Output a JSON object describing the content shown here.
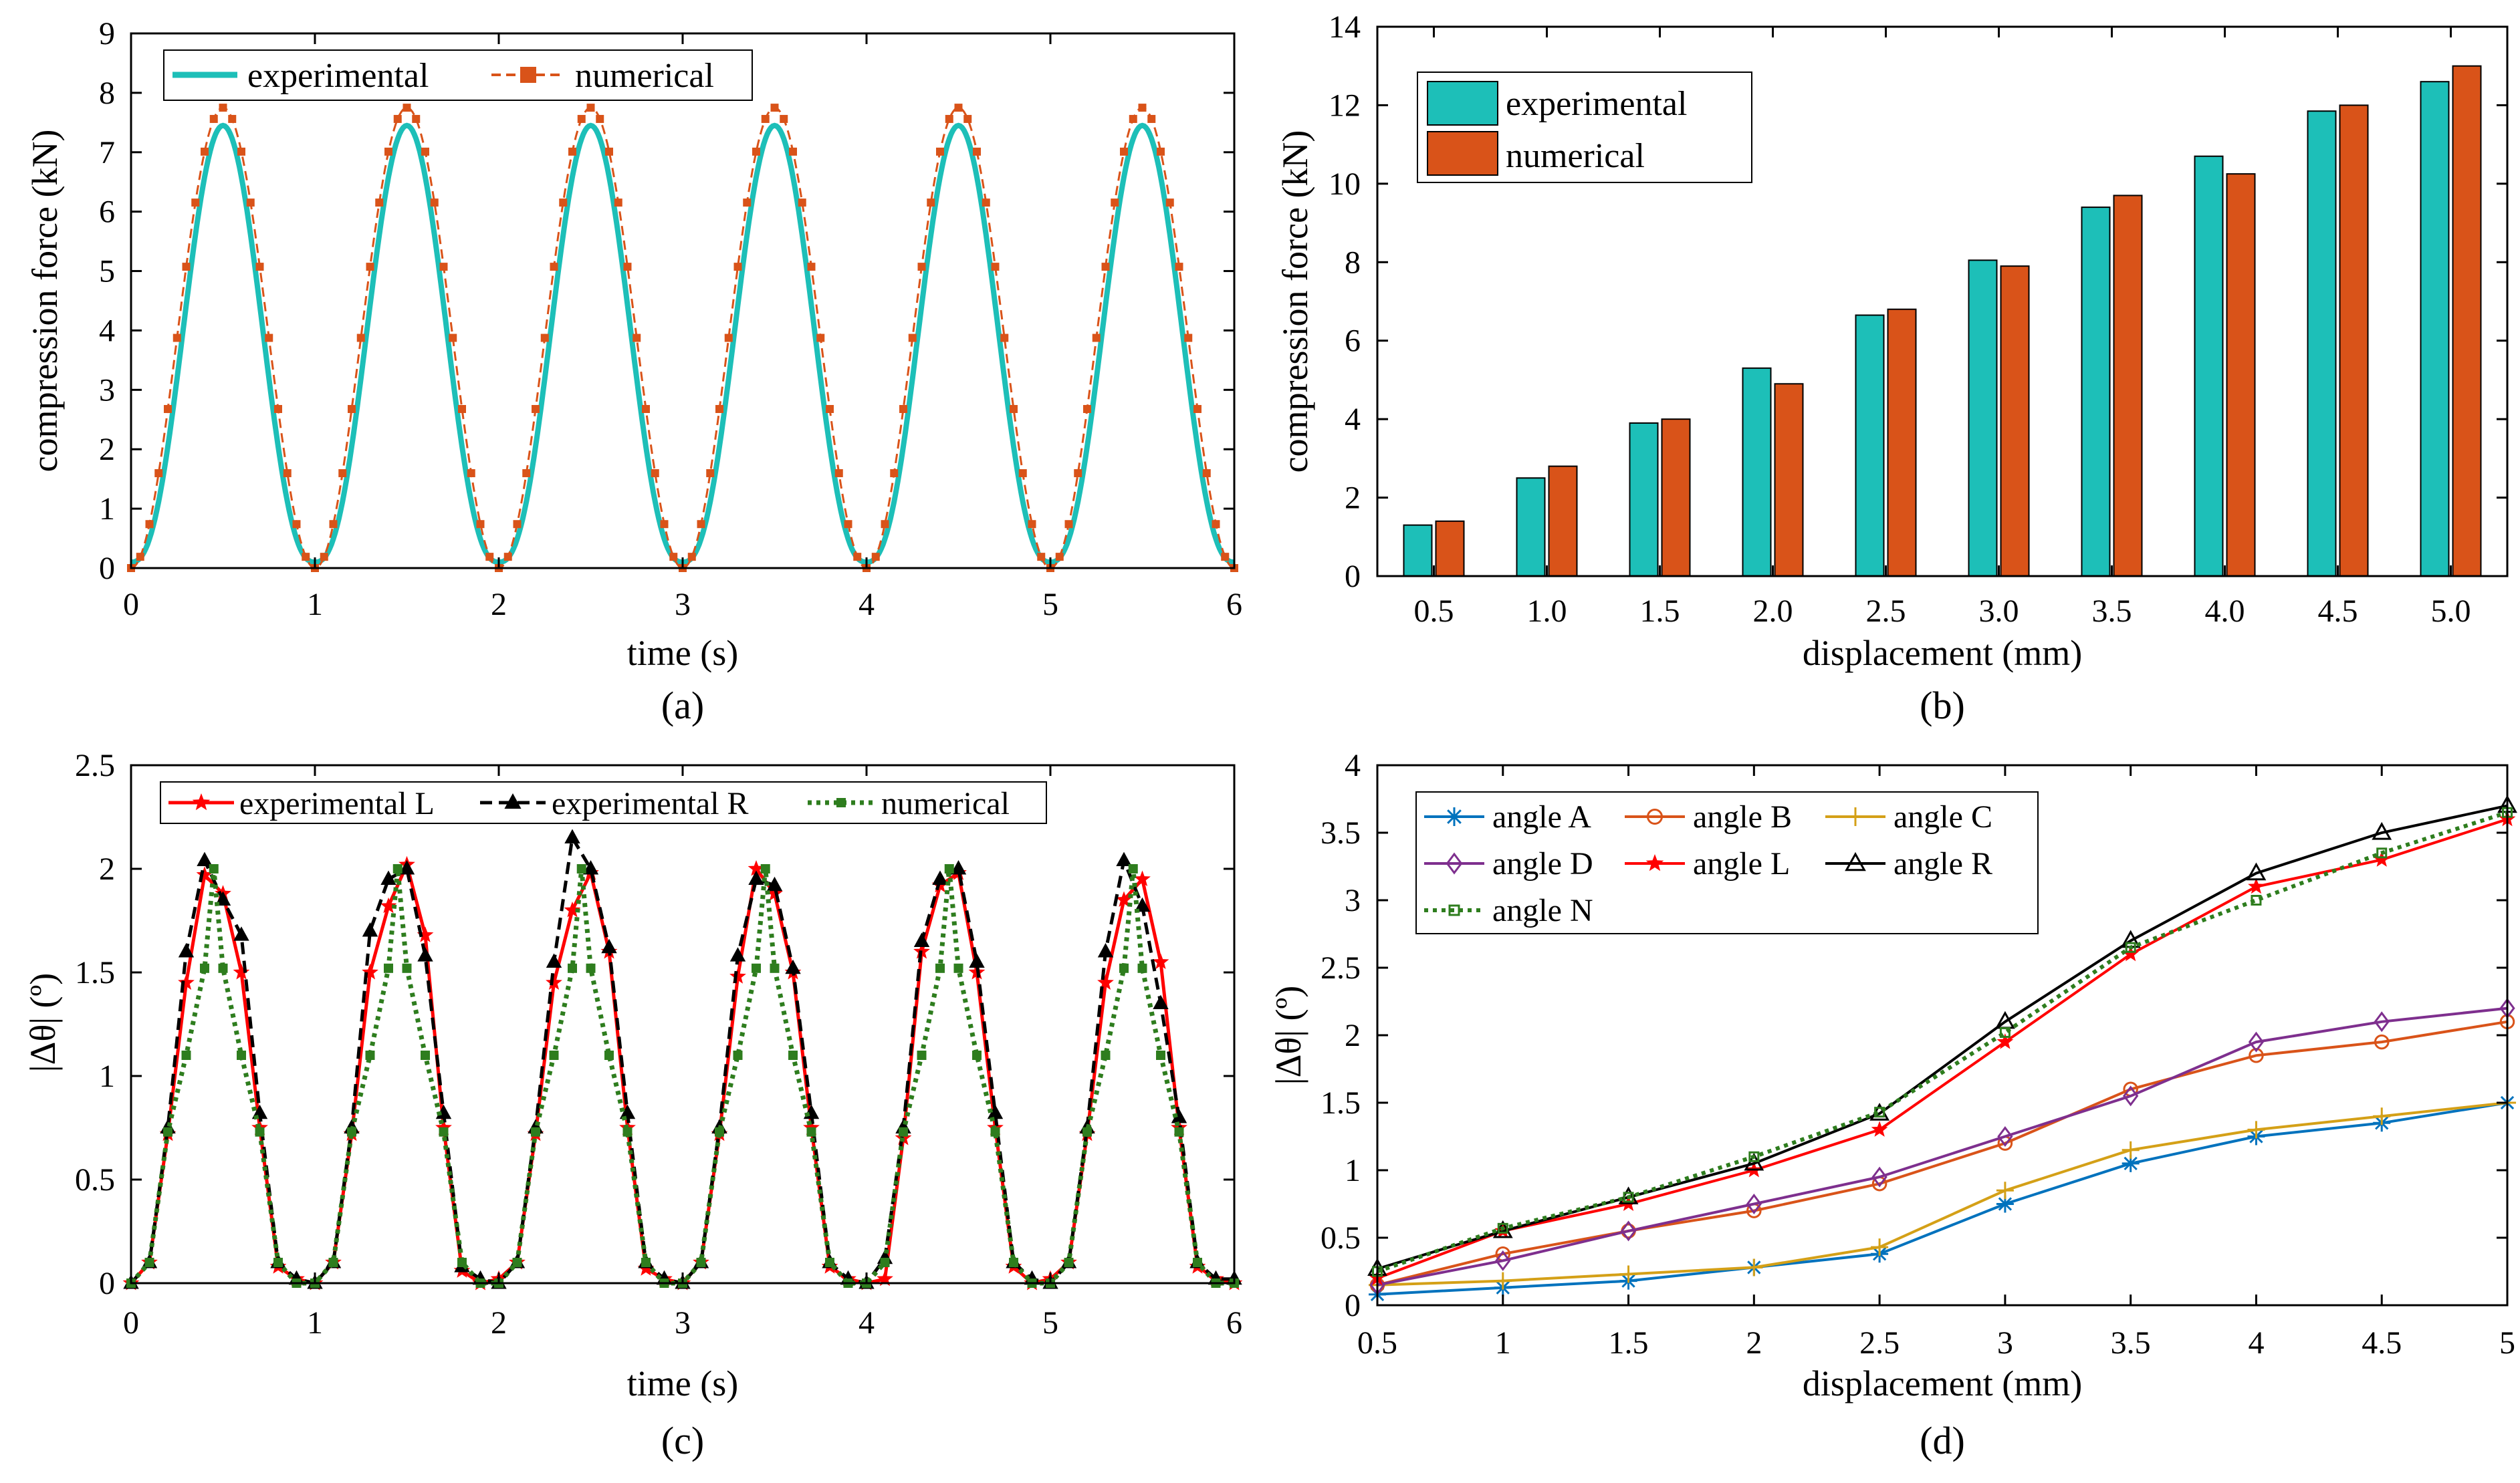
{
  "chart_data": [
    {
      "id": "a",
      "type": "line",
      "panel_label": "(a)",
      "xlabel": "time (s)",
      "ylabel": "compression force (kN)",
      "xlim": [
        0,
        6
      ],
      "ylim": [
        0,
        9
      ],
      "xticks": [
        0,
        1,
        2,
        3,
        4,
        5,
        6
      ],
      "yticks": [
        0,
        1,
        2,
        3,
        4,
        5,
        6,
        7,
        8,
        9
      ],
      "legend": "top-left",
      "series": [
        {
          "name": "experimental",
          "color": "#1dbfb8",
          "period": 1,
          "amplitude_max": 7.45,
          "amplitude_min": 0.1,
          "peak_times": [
            0.5,
            1.5,
            2.5,
            3.5,
            4.5,
            5.5
          ],
          "trough_times": [
            0,
            1,
            2,
            3,
            4,
            5,
            6
          ]
        },
        {
          "name": "numerical",
          "color": "#d95319",
          "marker": "square",
          "period": 1,
          "amplitude_max": 7.75,
          "amplitude_min": 0.0,
          "peak_times": [
            0.5,
            1.5,
            2.5,
            3.5,
            4.5,
            5.5
          ],
          "trough_times": [
            0,
            1,
            2,
            3,
            4,
            5,
            6
          ]
        }
      ]
    },
    {
      "id": "b",
      "type": "bar",
      "panel_label": "(b)",
      "xlabel": "displacement (mm)",
      "ylabel": "compression force (kN)",
      "ylim": [
        0,
        14
      ],
      "yticks": [
        0,
        2,
        4,
        6,
        8,
        10,
        12,
        14
      ],
      "legend": "top-left",
      "categories": [
        "0.5",
        "1.0",
        "1.5",
        "2.0",
        "2.5",
        "3.0",
        "3.5",
        "4.0",
        "4.5",
        "5.0"
      ],
      "series": [
        {
          "name": "experimental",
          "color": "#1dbfb8",
          "values": [
            1.3,
            2.5,
            3.9,
            5.3,
            6.65,
            8.05,
            9.4,
            10.7,
            11.85,
            12.6
          ]
        },
        {
          "name": "numerical",
          "color": "#d95319",
          "values": [
            1.4,
            2.8,
            4.0,
            4.9,
            6.8,
            7.9,
            9.7,
            10.25,
            12.0,
            13.0
          ]
        }
      ]
    },
    {
      "id": "c",
      "type": "line",
      "panel_label": "(c)",
      "xlabel": "time (s)",
      "ylabel": "|Δθ| (º)",
      "xlim": [
        0,
        6
      ],
      "ylim": [
        0,
        2.5
      ],
      "xticks": [
        0,
        1,
        2,
        3,
        4,
        5,
        6
      ],
      "yticks": [
        "0",
        "0.5",
        "1",
        "1.5",
        "2",
        "2.5"
      ],
      "legend": "top",
      "series": [
        {
          "name": "experimental L",
          "color": "#ff0000",
          "marker": "star",
          "dash": "solid",
          "x": [
            0,
            0.1,
            0.2,
            0.3,
            0.4,
            0.5,
            0.6,
            0.7,
            0.8,
            0.9,
            1.0,
            1.1,
            1.2,
            1.3,
            1.4,
            1.5,
            1.6,
            1.7,
            1.8,
            1.9,
            2.0,
            2.1,
            2.2,
            2.3,
            2.4,
            2.5,
            2.6,
            2.7,
            2.8,
            2.9,
            3.0,
            3.1,
            3.2,
            3.3,
            3.4,
            3.5,
            3.6,
            3.7,
            3.8,
            3.9,
            4.0,
            4.1,
            4.2,
            4.3,
            4.4,
            4.5,
            4.6,
            4.7,
            4.8,
            4.9,
            5.0,
            5.1,
            5.2,
            5.3,
            5.4,
            5.5,
            5.6,
            5.7,
            5.8,
            5.9,
            6.0
          ],
          "y": [
            0,
            0.1,
            0.72,
            1.45,
            1.97,
            1.88,
            1.5,
            0.75,
            0.08,
            0.02,
            0,
            0.1,
            0.72,
            1.5,
            1.82,
            2.02,
            1.68,
            0.75,
            0.06,
            0,
            0.02,
            0.1,
            0.72,
            1.45,
            1.8,
            1.98,
            1.6,
            0.75,
            0.07,
            0.02,
            0,
            0.1,
            0.72,
            1.48,
            2.0,
            1.88,
            1.5,
            0.75,
            0.08,
            0.02,
            0,
            0.02,
            0.7,
            1.6,
            1.92,
            1.98,
            1.5,
            0.75,
            0.08,
            0,
            0.02,
            0.1,
            0.72,
            1.45,
            1.85,
            1.95,
            1.55,
            0.75,
            0.08,
            0.02,
            0
          ]
        },
        {
          "name": "experimental R",
          "color": "#000000",
          "marker": "triangle",
          "dash": "dashed",
          "x": [
            0,
            0.1,
            0.2,
            0.3,
            0.4,
            0.5,
            0.6,
            0.7,
            0.8,
            0.9,
            1.0,
            1.1,
            1.2,
            1.3,
            1.4,
            1.5,
            1.6,
            1.7,
            1.8,
            1.9,
            2.0,
            2.1,
            2.2,
            2.3,
            2.4,
            2.5,
            2.6,
            2.7,
            2.8,
            2.9,
            3.0,
            3.1,
            3.2,
            3.3,
            3.4,
            3.5,
            3.6,
            3.7,
            3.8,
            3.9,
            4.0,
            4.1,
            4.2,
            4.3,
            4.4,
            4.5,
            4.6,
            4.7,
            4.8,
            4.9,
            5.0,
            5.1,
            5.2,
            5.3,
            5.4,
            5.5,
            5.6,
            5.7,
            5.8,
            5.9,
            6.0
          ],
          "y": [
            0,
            0.1,
            0.75,
            1.6,
            2.04,
            1.85,
            1.68,
            0.82,
            0.1,
            0.02,
            0,
            0.1,
            0.75,
            1.7,
            1.95,
            2.0,
            1.58,
            0.82,
            0.08,
            0.02,
            0,
            0.1,
            0.75,
            1.55,
            2.15,
            2.0,
            1.62,
            0.82,
            0.1,
            0.02,
            0,
            0.1,
            0.75,
            1.58,
            1.95,
            1.92,
            1.52,
            0.82,
            0.1,
            0.02,
            0,
            0.12,
            0.75,
            1.65,
            1.95,
            2.0,
            1.55,
            0.82,
            0.1,
            0.02,
            0,
            0.1,
            0.75,
            1.6,
            2.04,
            1.82,
            1.35,
            0.8,
            0.1,
            0.02,
            0.02
          ]
        },
        {
          "name": "numerical",
          "color": "#2e7d1e",
          "marker": "square",
          "dash": "dotted",
          "x": [
            0,
            0.1,
            0.2,
            0.3,
            0.4,
            0.45,
            0.5,
            0.6,
            0.7,
            0.8,
            0.9,
            1.0,
            1.1,
            1.2,
            1.3,
            1.4,
            1.45,
            1.5,
            1.6,
            1.7,
            1.8,
            1.9,
            2.0,
            2.1,
            2.2,
            2.3,
            2.4,
            2.45,
            2.5,
            2.6,
            2.7,
            2.8,
            2.9,
            3.0,
            3.1,
            3.2,
            3.3,
            3.4,
            3.45,
            3.5,
            3.6,
            3.7,
            3.8,
            3.9,
            4.0,
            4.1,
            4.2,
            4.3,
            4.4,
            4.45,
            4.5,
            4.6,
            4.7,
            4.8,
            4.9,
            5.0,
            5.1,
            5.2,
            5.3,
            5.4,
            5.45,
            5.5,
            5.6,
            5.7,
            5.8,
            5.9,
            6.0
          ],
          "y": [
            0,
            0.1,
            0.73,
            1.1,
            1.52,
            2.0,
            1.52,
            1.1,
            0.73,
            0.1,
            0,
            0,
            0.1,
            0.73,
            1.1,
            1.52,
            2.0,
            1.52,
            1.1,
            0.73,
            0.1,
            0,
            0,
            0.1,
            0.73,
            1.1,
            1.52,
            2.0,
            1.52,
            1.1,
            0.73,
            0.1,
            0,
            0,
            0.1,
            0.73,
            1.1,
            1.52,
            2.0,
            1.52,
            1.1,
            0.73,
            0.1,
            0,
            0,
            0.1,
            0.73,
            1.1,
            1.52,
            2.0,
            1.52,
            1.1,
            0.73,
            0.1,
            0,
            0,
            0.1,
            0.73,
            1.1,
            1.52,
            2.0,
            1.52,
            1.1,
            0.73,
            0.1,
            0,
            0
          ]
        }
      ]
    },
    {
      "id": "d",
      "type": "line",
      "panel_label": "(d)",
      "xlabel": "displacement (mm)",
      "ylabel": "|Δθ| (º)",
      "xlim": [
        0.5,
        5
      ],
      "ylim": [
        0,
        4
      ],
      "xticks": [
        "0.5",
        "1",
        "1.5",
        "2",
        "2.5",
        "3",
        "3.5",
        "4",
        "4.5",
        "5"
      ],
      "yticks": [
        "0",
        "0.5",
        "1",
        "1.5",
        "2",
        "2.5",
        "3",
        "3.5",
        "4"
      ],
      "legend": "top-left",
      "x": [
        0.5,
        1,
        1.5,
        2,
        2.5,
        3,
        3.5,
        4,
        4.5,
        5
      ],
      "series": [
        {
          "name": "angle A",
          "color": "#0072bd",
          "marker": "asterisk",
          "dash": "solid",
          "values": [
            0.08,
            0.13,
            0.18,
            0.28,
            0.38,
            0.75,
            1.05,
            1.25,
            1.35,
            1.5
          ]
        },
        {
          "name": "angle B",
          "color": "#d95319",
          "marker": "circle",
          "dash": "solid",
          "values": [
            0.15,
            0.38,
            0.55,
            0.7,
            0.9,
            1.2,
            1.6,
            1.85,
            1.95,
            2.1
          ]
        },
        {
          "name": "angle C",
          "color": "#d4a017",
          "marker": "plus",
          "dash": "solid",
          "values": [
            0.15,
            0.18,
            0.23,
            0.28,
            0.43,
            0.85,
            1.15,
            1.3,
            1.4,
            1.5
          ]
        },
        {
          "name": "angle D",
          "color": "#7e2f8e",
          "marker": "diamond",
          "dash": "solid",
          "values": [
            0.15,
            0.33,
            0.55,
            0.75,
            0.95,
            1.25,
            1.55,
            1.95,
            2.1,
            2.2
          ]
        },
        {
          "name": "angle L",
          "color": "#ff0000",
          "marker": "star",
          "dash": "solid",
          "values": [
            0.2,
            0.55,
            0.75,
            1.0,
            1.3,
            1.95,
            2.6,
            3.1,
            3.3,
            3.6
          ]
        },
        {
          "name": "angle R",
          "color": "#000000",
          "marker": "triangle",
          "dash": "solid",
          "values": [
            0.27,
            0.55,
            0.8,
            1.05,
            1.42,
            2.1,
            2.7,
            3.2,
            3.5,
            3.7
          ]
        },
        {
          "name": "angle N",
          "color": "#2e7d1e",
          "marker": "square",
          "dash": "dotted",
          "values": [
            0.25,
            0.57,
            0.8,
            1.1,
            1.43,
            2.02,
            2.65,
            3.0,
            3.35,
            3.65
          ]
        }
      ]
    }
  ]
}
